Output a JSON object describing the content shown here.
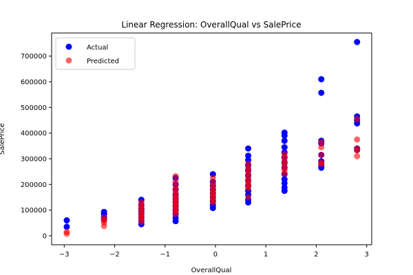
{
  "chart_data": {
    "type": "scatter",
    "title": "Linear Regression: OverallQual vs SalePrice",
    "xlabel": "OverallQual",
    "ylabel": "SalePrice",
    "xlim": [
      -3.25,
      3.1
    ],
    "ylim": [
      -35000,
      790000
    ],
    "xticks": [
      -3,
      -2,
      -1,
      0,
      1,
      2,
      3
    ],
    "yticks": [
      0,
      100000,
      200000,
      300000,
      400000,
      500000,
      600000,
      700000
    ],
    "grid": false,
    "legend": {
      "placement": "top-left"
    },
    "series": [
      {
        "name": "Actual",
        "color": "#0000ff",
        "opacity": 1.0,
        "points": [
          [
            -2.95,
            60000
          ],
          [
            -2.95,
            35000
          ],
          [
            -2.21,
            93000
          ],
          [
            -2.21,
            85000
          ],
          [
            -2.21,
            72000
          ],
          [
            -2.21,
            64000
          ],
          [
            -1.47,
            140000
          ],
          [
            -1.47,
            120000
          ],
          [
            -1.47,
            105000
          ],
          [
            -1.47,
            95000
          ],
          [
            -1.47,
            85000
          ],
          [
            -1.47,
            72000
          ],
          [
            -1.47,
            58000
          ],
          [
            -1.47,
            45000
          ],
          [
            -0.79,
            225000
          ],
          [
            -0.79,
            200000
          ],
          [
            -0.79,
            180000
          ],
          [
            -0.79,
            160000
          ],
          [
            -0.79,
            145000
          ],
          [
            -0.79,
            130000
          ],
          [
            -0.79,
            115000
          ],
          [
            -0.79,
            100000
          ],
          [
            -0.79,
            85000
          ],
          [
            -0.79,
            70000
          ],
          [
            -0.79,
            57000
          ],
          [
            -0.05,
            240000
          ],
          [
            -0.05,
            210000
          ],
          [
            -0.05,
            195000
          ],
          [
            -0.05,
            180000
          ],
          [
            -0.05,
            165000
          ],
          [
            -0.05,
            150000
          ],
          [
            -0.05,
            135000
          ],
          [
            -0.05,
            120000
          ],
          [
            -0.05,
            108000
          ],
          [
            0.65,
            340000
          ],
          [
            0.65,
            312000
          ],
          [
            0.65,
            295000
          ],
          [
            0.65,
            275000
          ],
          [
            0.65,
            255000
          ],
          [
            0.65,
            235000
          ],
          [
            0.65,
            215000
          ],
          [
            0.65,
            195000
          ],
          [
            0.65,
            175000
          ],
          [
            0.65,
            160000
          ],
          [
            0.65,
            140000
          ],
          [
            0.65,
            130000
          ],
          [
            1.37,
            402000
          ],
          [
            1.37,
            390000
          ],
          [
            1.37,
            370000
          ],
          [
            1.37,
            345000
          ],
          [
            1.37,
            325000
          ],
          [
            1.37,
            305000
          ],
          [
            1.37,
            285000
          ],
          [
            1.37,
            265000
          ],
          [
            1.37,
            240000
          ],
          [
            1.37,
            220000
          ],
          [
            1.37,
            205000
          ],
          [
            1.37,
            188000
          ],
          [
            1.37,
            175000
          ],
          [
            2.1,
            610000
          ],
          [
            2.1,
            557000
          ],
          [
            2.1,
            370000
          ],
          [
            2.1,
            360000
          ],
          [
            2.1,
            315000
          ],
          [
            2.1,
            290000
          ],
          [
            2.1,
            275000
          ],
          [
            2.1,
            265000
          ],
          [
            2.81,
            755000
          ],
          [
            2.81,
            465000
          ],
          [
            2.81,
            450000
          ],
          [
            2.81,
            438000
          ],
          [
            2.81,
            340000
          ],
          [
            2.81,
            335000
          ]
        ]
      },
      {
        "name": "Predicted",
        "color": "#ff0000",
        "opacity": 0.6,
        "points": [
          [
            -2.95,
            15000
          ],
          [
            -2.95,
            8000
          ],
          [
            -2.21,
            70000
          ],
          [
            -2.21,
            60000
          ],
          [
            -2.21,
            52000
          ],
          [
            -2.21,
            38000
          ],
          [
            -1.47,
            130000
          ],
          [
            -1.47,
            118000
          ],
          [
            -1.47,
            108000
          ],
          [
            -1.47,
            96000
          ],
          [
            -1.47,
            86000
          ],
          [
            -1.47,
            76000
          ],
          [
            -1.47,
            66000
          ],
          [
            -1.47,
            55000
          ],
          [
            -0.79,
            232000
          ],
          [
            -0.79,
            210000
          ],
          [
            -0.79,
            195000
          ],
          [
            -0.79,
            180000
          ],
          [
            -0.79,
            168000
          ],
          [
            -0.79,
            156000
          ],
          [
            -0.79,
            145000
          ],
          [
            -0.79,
            135000
          ],
          [
            -0.79,
            125000
          ],
          [
            -0.79,
            115000
          ],
          [
            -0.79,
            105000
          ],
          [
            -0.79,
            95000
          ],
          [
            -0.79,
            85000
          ],
          [
            -0.05,
            225000
          ],
          [
            -0.05,
            205000
          ],
          [
            -0.05,
            192000
          ],
          [
            -0.05,
            180000
          ],
          [
            -0.05,
            170000
          ],
          [
            -0.05,
            160000
          ],
          [
            -0.05,
            150000
          ],
          [
            -0.05,
            140000
          ],
          [
            -0.05,
            130000
          ],
          [
            0.65,
            280000
          ],
          [
            0.65,
            265000
          ],
          [
            0.65,
            252000
          ],
          [
            0.65,
            240000
          ],
          [
            0.65,
            228000
          ],
          [
            0.65,
            216000
          ],
          [
            0.65,
            205000
          ],
          [
            0.65,
            195000
          ],
          [
            0.65,
            185000
          ],
          [
            0.65,
            150000
          ],
          [
            1.37,
            318000
          ],
          [
            1.37,
            305000
          ],
          [
            1.37,
            292000
          ],
          [
            1.37,
            280000
          ],
          [
            1.37,
            268000
          ],
          [
            1.37,
            255000
          ],
          [
            1.37,
            242000
          ],
          [
            2.1,
            365000
          ],
          [
            2.1,
            345000
          ],
          [
            2.1,
            315000
          ],
          [
            2.1,
            285000
          ],
          [
            2.1,
            280000
          ],
          [
            2.81,
            455000
          ],
          [
            2.81,
            375000
          ],
          [
            2.81,
            340000
          ],
          [
            2.81,
            332000
          ],
          [
            2.81,
            310000
          ]
        ]
      }
    ]
  }
}
